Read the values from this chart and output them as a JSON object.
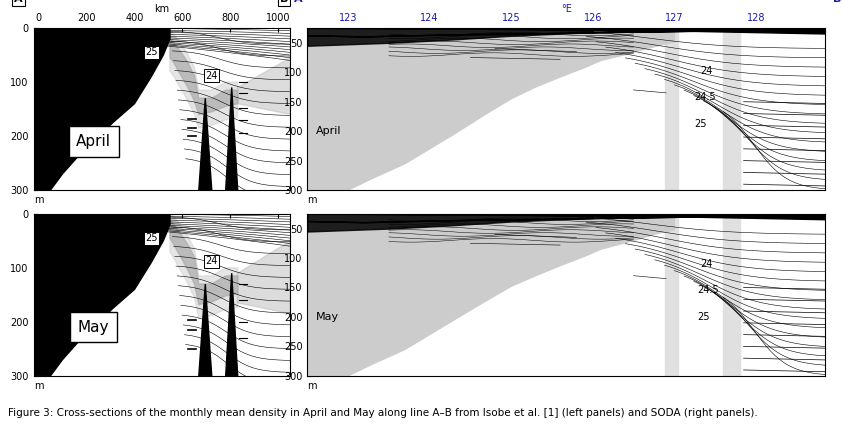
{
  "figure_caption": "Figure 3: Cross-sections of the monthly mean density in April and May along line A–B from Isobe et al. [1] (left panels) and SODA (right panels).",
  "left_panels": {
    "x_ticks": [
      0,
      200,
      400,
      600,
      800,
      1000
    ],
    "x_label": "km",
    "y_ticks": [
      0,
      100,
      200,
      300
    ],
    "y_lim": [
      300,
      0
    ],
    "x_lim": [
      -20,
      1050
    ]
  },
  "right_panels": {
    "x_ticks": [
      123,
      124,
      125,
      126,
      127,
      128
    ],
    "x_label": "°E",
    "y_ticks": [
      50,
      100,
      150,
      200,
      250,
      300
    ],
    "y_lim": [
      300,
      25
    ],
    "x_lim": [
      122.5,
      128.85
    ]
  },
  "colors": {
    "land_black": "#000000",
    "shelf_light": "#cccccc",
    "gray_shade1": "#aaaaaa",
    "gray_shade2": "#bbbbbb",
    "gray_band": "#d8d8d8",
    "background": "#ffffff",
    "blue_axis": "#1a1aaa",
    "dark_red": "#8B0000"
  },
  "font_sizes": {
    "caption": 7.5,
    "tick_label": 7,
    "month_label": 11,
    "contour_label": 7,
    "ab_label": 8
  }
}
